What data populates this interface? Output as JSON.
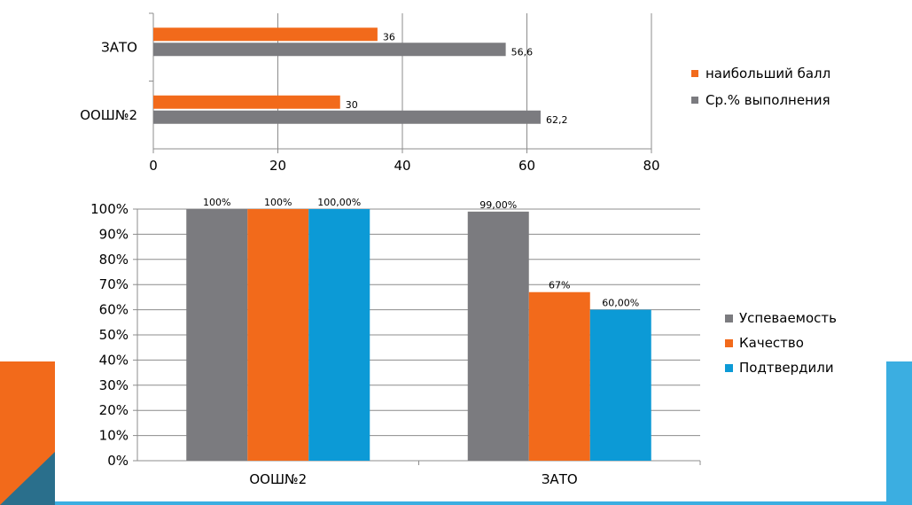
{
  "colors": {
    "gray": "#7b7b7f",
    "orange": "#f26a1b",
    "blue": "#0c9ad6",
    "accent_blue": "#3baee1",
    "dark_teal": "#2a6f8c"
  },
  "chart_data": [
    {
      "type": "bar",
      "orientation": "horizontal",
      "categories": [
        "ЗАТО",
        "ООШ№2"
      ],
      "series": [
        {
          "name": "наибольший  балл",
          "values": [
            36,
            30
          ],
          "labels": [
            "36",
            "30"
          ],
          "color": "#f26a1b"
        },
        {
          "name": "Ср.% выполнения",
          "values": [
            56.6,
            62.2
          ],
          "labels": [
            "56,6",
            "62,2"
          ],
          "color": "#7b7b7f"
        }
      ],
      "xlim": [
        0,
        80
      ],
      "xticks": [
        "0",
        "20",
        "40",
        "60",
        "80"
      ],
      "grid": true,
      "legend": "right"
    },
    {
      "type": "bar",
      "orientation": "vertical",
      "categories": [
        "ООШ№2",
        "ЗАТО"
      ],
      "series": [
        {
          "name": "Успеваемость",
          "values": [
            100,
            99
          ],
          "labels": [
            "100%",
            "99,00%"
          ],
          "color": "#7b7b7f"
        },
        {
          "name": "Качество",
          "values": [
            100,
            67
          ],
          "labels": [
            "100%",
            "67%"
          ],
          "color": "#f26a1b"
        },
        {
          "name": "Подтвердили",
          "values": [
            100,
            60
          ],
          "labels": [
            "100,00%",
            "60,00%"
          ],
          "color": "#0c9ad6"
        }
      ],
      "ylim": [
        0,
        100
      ],
      "yticks": [
        "0%",
        "10%",
        "20%",
        "30%",
        "40%",
        "50%",
        "60%",
        "70%",
        "80%",
        "90%",
        "100%"
      ],
      "grid": true,
      "legend": "right"
    }
  ]
}
